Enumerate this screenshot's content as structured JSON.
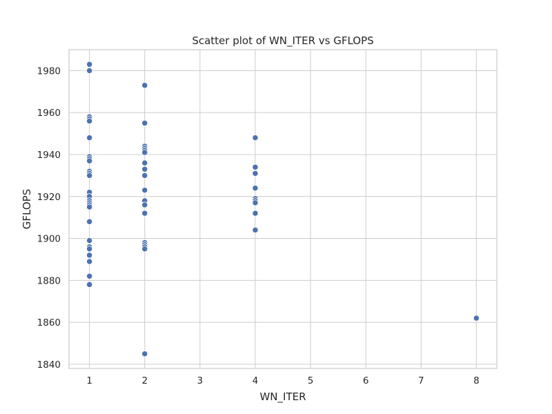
{
  "chart_data": {
    "type": "scatter",
    "title": "Scatter plot of WN_ITER vs GFLOPS",
    "xlabel": "WN_ITER",
    "ylabel": "GFLOPS",
    "xlim": [
      0.63,
      8.37
    ],
    "ylim": [
      1838,
      1990
    ],
    "xticks": [
      1,
      2,
      3,
      4,
      5,
      6,
      7,
      8
    ],
    "yticks": [
      1840,
      1860,
      1880,
      1900,
      1920,
      1940,
      1960,
      1980
    ],
    "grid": true,
    "color": "#4c72b0",
    "points": [
      {
        "x": 1,
        "y": 1983
      },
      {
        "x": 1,
        "y": 1980
      },
      {
        "x": 1,
        "y": 1958
      },
      {
        "x": 1,
        "y": 1957
      },
      {
        "x": 1,
        "y": 1956
      },
      {
        "x": 1,
        "y": 1948
      },
      {
        "x": 1,
        "y": 1939
      },
      {
        "x": 1,
        "y": 1938
      },
      {
        "x": 1,
        "y": 1937
      },
      {
        "x": 1,
        "y": 1932
      },
      {
        "x": 1,
        "y": 1931
      },
      {
        "x": 1,
        "y": 1930
      },
      {
        "x": 1,
        "y": 1922
      },
      {
        "x": 1,
        "y": 1920
      },
      {
        "x": 1,
        "y": 1918
      },
      {
        "x": 1,
        "y": 1917
      },
      {
        "x": 1,
        "y": 1916
      },
      {
        "x": 1,
        "y": 1915
      },
      {
        "x": 1,
        "y": 1908
      },
      {
        "x": 1,
        "y": 1899
      },
      {
        "x": 1,
        "y": 1896
      },
      {
        "x": 1,
        "y": 1895
      },
      {
        "x": 1,
        "y": 1892
      },
      {
        "x": 1,
        "y": 1889
      },
      {
        "x": 1,
        "y": 1882
      },
      {
        "x": 1,
        "y": 1878
      },
      {
        "x": 2,
        "y": 1973
      },
      {
        "x": 2,
        "y": 1955
      },
      {
        "x": 2,
        "y": 1944
      },
      {
        "x": 2,
        "y": 1943
      },
      {
        "x": 2,
        "y": 1942
      },
      {
        "x": 2,
        "y": 1941
      },
      {
        "x": 2,
        "y": 1936
      },
      {
        "x": 2,
        "y": 1933
      },
      {
        "x": 2,
        "y": 1930
      },
      {
        "x": 2,
        "y": 1923
      },
      {
        "x": 2,
        "y": 1918
      },
      {
        "x": 2,
        "y": 1916
      },
      {
        "x": 2,
        "y": 1912
      },
      {
        "x": 2,
        "y": 1898
      },
      {
        "x": 2,
        "y": 1897
      },
      {
        "x": 2,
        "y": 1896
      },
      {
        "x": 2,
        "y": 1895
      },
      {
        "x": 2,
        "y": 1845
      },
      {
        "x": 4,
        "y": 1948
      },
      {
        "x": 4,
        "y": 1934
      },
      {
        "x": 4,
        "y": 1931
      },
      {
        "x": 4,
        "y": 1924
      },
      {
        "x": 4,
        "y": 1919
      },
      {
        "x": 4,
        "y": 1918
      },
      {
        "x": 4,
        "y": 1917
      },
      {
        "x": 4,
        "y": 1912
      },
      {
        "x": 4,
        "y": 1904
      },
      {
        "x": 8,
        "y": 1862
      }
    ]
  }
}
